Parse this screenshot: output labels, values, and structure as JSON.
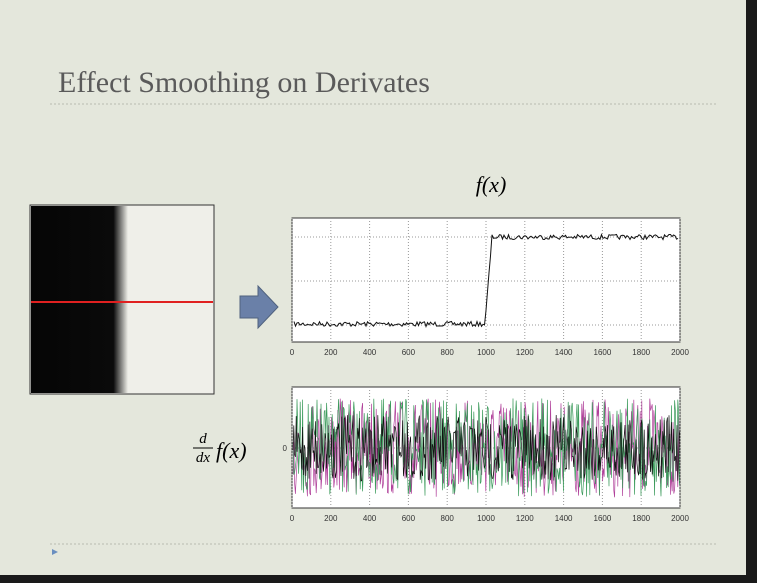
{
  "slide": {
    "title": "Effect Smoothing on Derivates",
    "plots": [
      {
        "label": "f(x)",
        "xlim": [
          0,
          2000
        ],
        "xticks": [
          0,
          200,
          400,
          600,
          800,
          1000,
          1200,
          1400,
          1600,
          1800,
          2000
        ]
      },
      {
        "label": {
          "numerator": "d",
          "denominator": "dx",
          "function": "f(x)"
        },
        "ytick": "0",
        "xlim": [
          0,
          2000
        ],
        "xticks": [
          0,
          200,
          400,
          600,
          800,
          1000,
          1200,
          1400,
          1600,
          1800,
          2000
        ]
      }
    ]
  }
}
